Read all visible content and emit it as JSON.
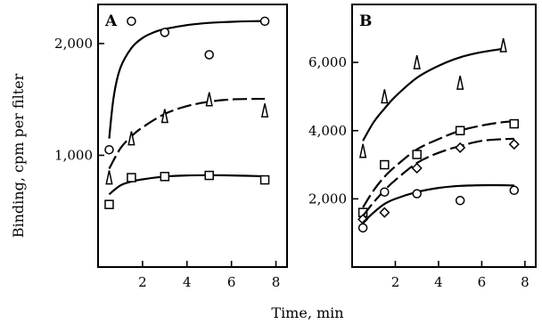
{
  "figure": {
    "ylabel": "Binding, cpm per filter",
    "xlabel": "Time, min"
  },
  "chart_data": [
    {
      "type": "scatter",
      "panel": "A",
      "x_ticks": [
        2,
        4,
        6,
        8
      ],
      "y_ticks": [
        1000,
        2000
      ],
      "y_tick_labels": [
        "1,000",
        "2,000"
      ],
      "xlim": [
        0,
        8.5
      ],
      "ylim": [
        0,
        2350
      ],
      "series": [
        {
          "marker": "circle",
          "curve_style": "solid",
          "x": [
            0.5,
            1.5,
            3,
            5,
            7.5
          ],
          "y": [
            1050,
            2200,
            2100,
            1900,
            2200
          ],
          "fit_x": [
            0.5,
            0.7,
            1,
            1.5,
            2,
            2.5,
            3,
            4,
            5,
            6,
            7,
            7.5
          ],
          "fit_y": [
            1150,
            1520,
            1780,
            1960,
            2050,
            2100,
            2130,
            2165,
            2185,
            2195,
            2200,
            2200
          ]
        },
        {
          "marker": "triangle",
          "curve_style": "dashed",
          "x": [
            0.5,
            1.5,
            3,
            5,
            7.5
          ],
          "y": [
            800,
            1150,
            1350,
            1500,
            1400
          ],
          "fit_x": [
            0.5,
            1,
            1.5,
            2,
            3,
            4,
            5,
            6,
            7,
            7.5
          ],
          "fit_y": [
            880,
            1060,
            1170,
            1250,
            1370,
            1440,
            1480,
            1500,
            1505,
            1505
          ]
        },
        {
          "marker": "square",
          "curve_style": "solid",
          "x": [
            0.5,
            1.5,
            3,
            5,
            7.5
          ],
          "y": [
            560,
            800,
            810,
            820,
            780
          ],
          "fit_x": [
            0.5,
            1,
            1.5,
            2,
            3,
            4,
            5,
            6,
            7,
            7.5
          ],
          "fit_y": [
            650,
            730,
            765,
            785,
            810,
            820,
            822,
            820,
            815,
            812
          ]
        }
      ]
    },
    {
      "type": "scatter",
      "panel": "B",
      "x_ticks": [
        2,
        4,
        6,
        8
      ],
      "y_ticks": [
        2000,
        4000,
        6000
      ],
      "y_tick_labels": [
        "2,000",
        "4,000",
        "6,000"
      ],
      "xlim": [
        0,
        8.5
      ],
      "ylim": [
        0,
        7700
      ],
      "series": [
        {
          "marker": "triangle",
          "curve_style": "solid",
          "x": [
            0.5,
            1.5,
            3,
            5,
            7
          ],
          "y": [
            3400,
            5000,
            6000,
            5400,
            6500
          ],
          "fit_x": [
            0.5,
            1,
            1.5,
            2,
            3,
            4,
            5,
            6,
            7
          ],
          "fit_y": [
            3700,
            4250,
            4650,
            5000,
            5550,
            5900,
            6150,
            6300,
            6400
          ]
        },
        {
          "marker": "square",
          "curve_style": "dashed",
          "x": [
            0.5,
            1.5,
            3,
            5,
            7.5
          ],
          "y": [
            1600,
            3000,
            3300,
            4000,
            4200
          ],
          "fit_x": [
            0.5,
            1,
            1.5,
            2,
            3,
            4,
            5,
            6,
            7,
            7.5
          ],
          "fit_y": [
            1750,
            2250,
            2650,
            2950,
            3450,
            3750,
            4000,
            4150,
            4250,
            4270
          ]
        },
        {
          "marker": "diamond",
          "curve_style": "dashed",
          "x": [
            0.5,
            1.5,
            3,
            5,
            7.5
          ],
          "y": [
            1400,
            1600,
            2900,
            3500,
            3600
          ],
          "fit_x": [
            0.5,
            1,
            1.5,
            2,
            3,
            4,
            5,
            6,
            7,
            7.5
          ],
          "fit_y": [
            1500,
            1900,
            2250,
            2550,
            3050,
            3350,
            3550,
            3700,
            3750,
            3760
          ]
        },
        {
          "marker": "circle",
          "curve_style": "solid",
          "x": [
            0.5,
            1.5,
            3,
            5,
            7.5
          ],
          "y": [
            1150,
            2200,
            2150,
            1950,
            2250
          ],
          "fit_x": [
            0.5,
            1,
            1.5,
            2,
            3,
            4,
            5,
            6,
            7,
            7.5
          ],
          "fit_y": [
            1300,
            1600,
            1850,
            2000,
            2200,
            2320,
            2380,
            2400,
            2400,
            2390
          ]
        }
      ]
    }
  ]
}
